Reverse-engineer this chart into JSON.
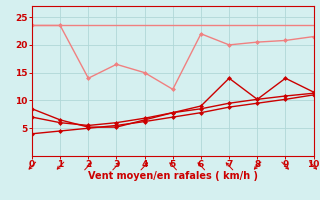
{
  "x": [
    0,
    1,
    2,
    3,
    4,
    5,
    6,
    7,
    8,
    9,
    10
  ],
  "line_flat_top": [
    23.5,
    23.5,
    23.5,
    23.5,
    23.5,
    23.5,
    23.5,
    23.5,
    23.5,
    23.5,
    23.5
  ],
  "line_wavy_top": [
    23.5,
    23.5,
    14.0,
    16.5,
    15.0,
    12.0,
    22.0,
    20.0,
    20.5,
    20.8,
    21.5
  ],
  "line_spiky": [
    8.5,
    6.5,
    5.2,
    5.2,
    6.5,
    7.8,
    9.0,
    14.0,
    10.2,
    14.0,
    11.5
  ],
  "line_grad1": [
    7.0,
    6.0,
    5.5,
    6.0,
    6.8,
    7.8,
    8.5,
    9.5,
    10.2,
    10.8,
    11.3
  ],
  "line_grad2": [
    4.0,
    4.5,
    5.0,
    5.5,
    6.2,
    7.0,
    7.8,
    8.8,
    9.5,
    10.2,
    11.0
  ],
  "color_light": "#F08080",
  "color_dark": "#CC0000",
  "bg_color": "#D5F0F0",
  "grid_color": "#B0D8D8",
  "xlabel": "Vent moyen/en rafales ( km/h )",
  "xlabel_color": "#CC0000",
  "tick_color": "#CC0000",
  "ylim": [
    0,
    27
  ],
  "xlim": [
    0,
    10
  ],
  "yticks": [
    5,
    10,
    15,
    20,
    25
  ],
  "xticks": [
    0,
    1,
    2,
    3,
    4,
    5,
    6,
    7,
    8,
    9,
    10
  ],
  "arrow_angles_deg": [
    225,
    225,
    45,
    45,
    45,
    135,
    135,
    135,
    225,
    315,
    315
  ]
}
